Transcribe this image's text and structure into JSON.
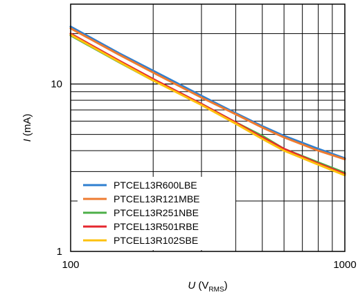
{
  "chart_data": {
    "type": "line",
    "x_scale": "log",
    "y_scale": "log",
    "xlim": [
      100,
      1000
    ],
    "ylim": [
      1,
      30
    ],
    "grid": true,
    "legend_position": "bottom-left",
    "xlabel_var": "U",
    "xlabel_unit_open": " (V",
    "xlabel_unit_sub": "RMS",
    "xlabel_unit_close": ")",
    "ylabel_var": "I",
    "ylabel_unit": " (mA)",
    "x_ticks": [
      {
        "value": 100,
        "label": "100"
      },
      {
        "value": 1000,
        "label": "1000"
      }
    ],
    "y_ticks": [
      {
        "value": 1,
        "label": "1"
      },
      {
        "value": 10,
        "label": "10"
      }
    ],
    "series": [
      {
        "name": "PTCEL13R600LBE",
        "color": "#2e7fd0",
        "x": [
          100,
          150,
          200,
          300,
          400,
          500,
          600,
          800,
          1000
        ],
        "y": [
          22.0,
          15.3,
          12.0,
          8.5,
          6.7,
          5.6,
          4.9,
          4.1,
          3.6
        ]
      },
      {
        "name": "PTCEL13R121MBE",
        "color": "#ee7b30",
        "x": [
          100,
          150,
          200,
          300,
          400,
          500,
          600,
          800,
          1000
        ],
        "y": [
          21.5,
          15.0,
          11.7,
          8.3,
          6.6,
          5.5,
          4.8,
          4.0,
          3.55
        ]
      },
      {
        "name": "PTCEL13R251NBE",
        "color": "#4caf48",
        "x": [
          100,
          150,
          200,
          300,
          400,
          500,
          600,
          800,
          1000
        ],
        "y": [
          19.5,
          13.5,
          10.5,
          7.6,
          5.9,
          4.9,
          4.1,
          3.4,
          2.95
        ]
      },
      {
        "name": "PTCEL13R501RBE",
        "color": "#e5262e",
        "x": [
          100,
          150,
          200,
          300,
          400,
          500,
          600,
          800,
          1000
        ],
        "y": [
          20.0,
          13.8,
          10.7,
          7.6,
          5.9,
          4.8,
          4.1,
          3.35,
          2.9
        ]
      },
      {
        "name": "PTCEL13R102SBE",
        "color": "#fdc10e",
        "x": [
          100,
          150,
          200,
          300,
          400,
          500,
          600,
          800,
          1000
        ],
        "y": [
          19.7,
          13.6,
          10.5,
          7.5,
          5.8,
          4.7,
          4.0,
          3.3,
          2.85
        ]
      }
    ]
  }
}
